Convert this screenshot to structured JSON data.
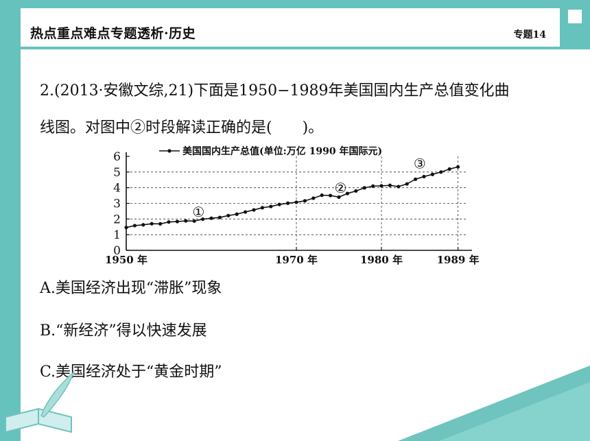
{
  "header": {
    "title": "热点重点难点专题透析·历史",
    "badge": "专题14"
  },
  "question": {
    "line1": "2.(2013·安徽文综,21)下面是1950−1989年美国国内生产总值变化曲",
    "line2": "线图。对图中②时段解读正确的是(　　)。"
  },
  "options": [
    {
      "text": "A.美国经济出现“滞胀”现象"
    },
    {
      "text": "B.“新经济”得以快速发展"
    },
    {
      "text": "C.美国经济处于“黄金时期”"
    }
  ],
  "chart_data": {
    "type": "line",
    "legend": "美国国内生产总值(单位:万亿 1990 年国际元)",
    "x_tick_labels": [
      "1950 年",
      "1970 年",
      "1980 年",
      "1989 年"
    ],
    "x_ticks": [
      1950,
      1970,
      1980,
      1989
    ],
    "y_ticks": [
      0,
      1,
      2,
      3,
      4,
      5,
      6
    ],
    "xlim": [
      1950,
      1990
    ],
    "ylim": [
      0,
      6
    ],
    "grid": "dashed horizontal at 2,3,4,5 and vertical at 1970,1980",
    "annotations": [
      {
        "label": "①",
        "x": 1958.5,
        "y": 2.4
      },
      {
        "label": "②",
        "x": 1975.2,
        "y": 3.95
      },
      {
        "label": "③",
        "x": 1984.5,
        "y": 5.5
      }
    ],
    "series": [
      {
        "x": [
          1950,
          1951,
          1952,
          1953,
          1954,
          1955,
          1956,
          1957,
          1958,
          1959,
          1960,
          1961,
          1962,
          1963,
          1964,
          1965,
          1966,
          1967,
          1968,
          1969,
          1970,
          1971,
          1972,
          1973,
          1974,
          1975,
          1976,
          1977,
          1978,
          1979,
          1980,
          1981,
          1982,
          1983,
          1984,
          1985,
          1986,
          1987,
          1988,
          1989
        ],
        "y": [
          1.46,
          1.58,
          1.63,
          1.7,
          1.69,
          1.81,
          1.84,
          1.88,
          1.87,
          1.99,
          2.05,
          2.1,
          2.22,
          2.31,
          2.45,
          2.58,
          2.72,
          2.8,
          2.93,
          3.01,
          3.07,
          3.16,
          3.33,
          3.52,
          3.5,
          3.4,
          3.63,
          3.79,
          3.99,
          4.1,
          4.12,
          4.15,
          4.07,
          4.24,
          4.54,
          4.71,
          4.85,
          5.0,
          5.19,
          5.33
        ]
      }
    ]
  }
}
